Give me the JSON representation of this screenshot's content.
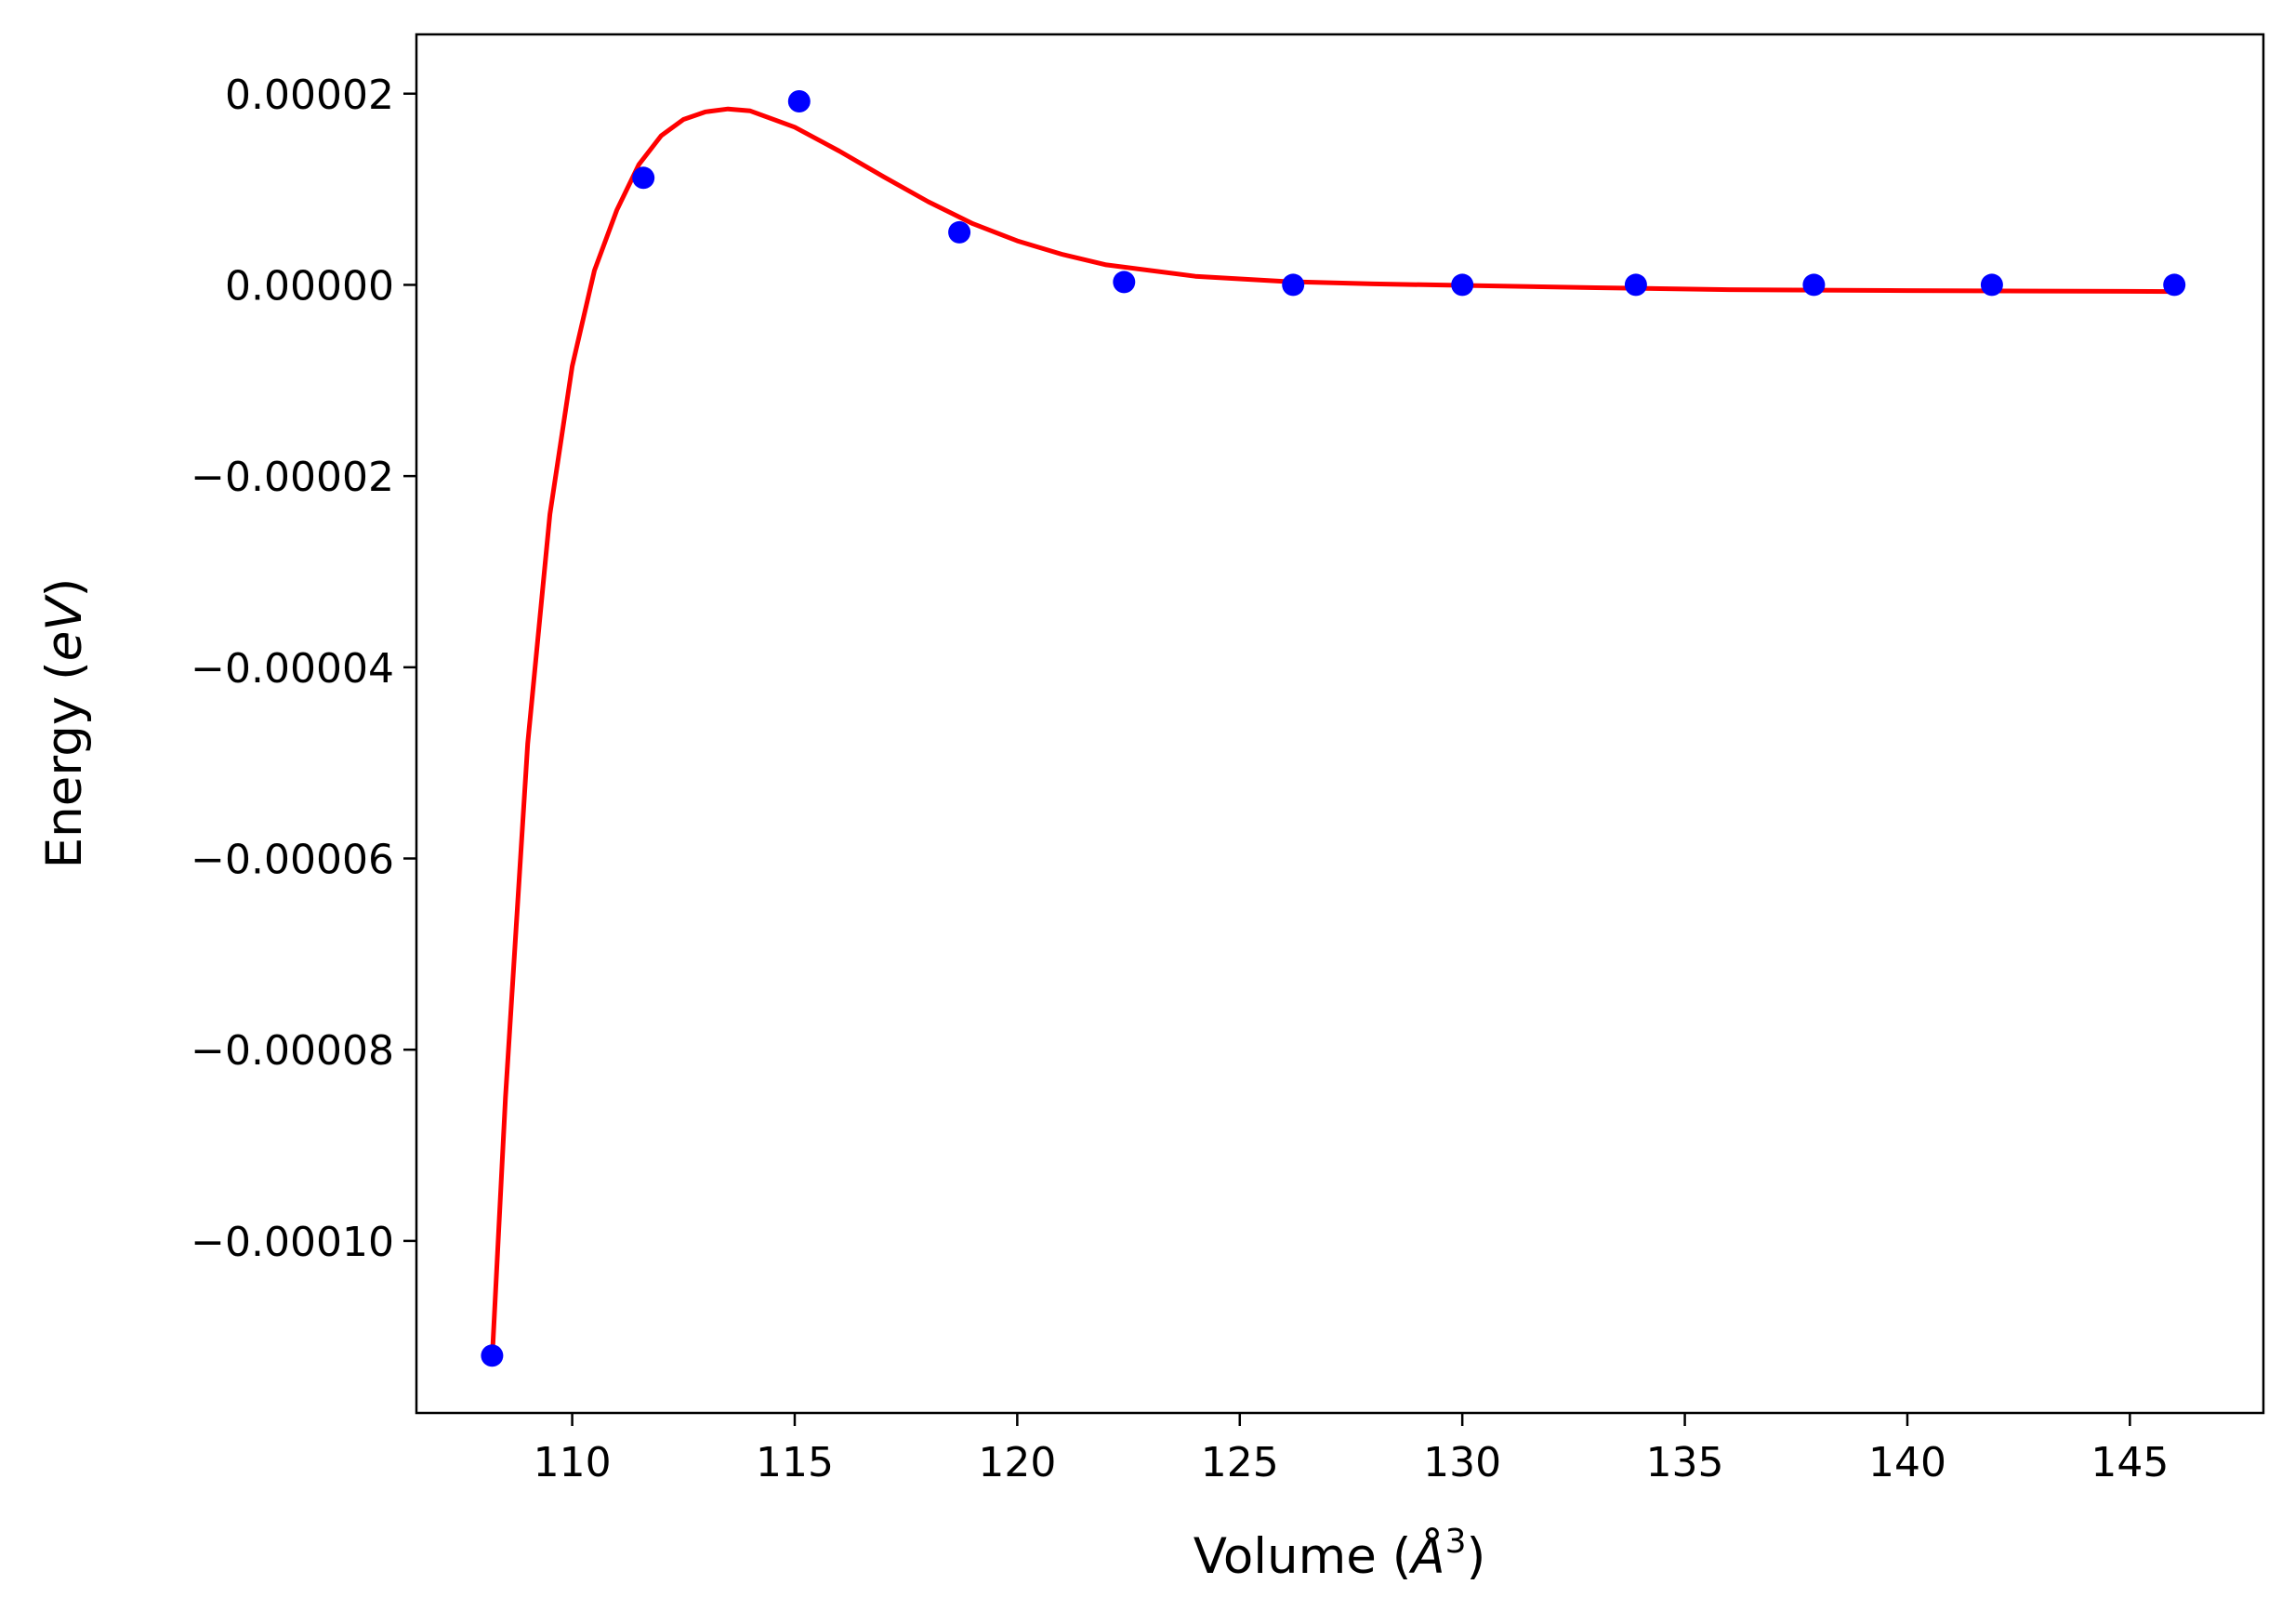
{
  "chart_data": {
    "type": "scatter",
    "xlabel": {
      "prefix": "Volume (",
      "symbol": "Å",
      "superscript": "3",
      "suffix": ")"
    },
    "ylabel": {
      "prefix": "Energy (",
      "italic": "eV",
      "suffix": ")"
    },
    "xlim": [
      106.5,
      148.0
    ],
    "ylim": [
      -0.000118,
      2.62e-05
    ],
    "x_ticks": [
      {
        "value": 110,
        "label": "110"
      },
      {
        "value": 115,
        "label": "115"
      },
      {
        "value": 120,
        "label": "120"
      },
      {
        "value": 125,
        "label": "125"
      },
      {
        "value": 130,
        "label": "130"
      },
      {
        "value": 135,
        "label": "135"
      },
      {
        "value": 140,
        "label": "140"
      },
      {
        "value": 145,
        "label": "145"
      }
    ],
    "y_ticks": [
      {
        "value": 2e-05,
        "label": "0.00002"
      },
      {
        "value": 0.0,
        "label": "0.00000"
      },
      {
        "value": -2e-05,
        "label": "−0.00002"
      },
      {
        "value": -4e-05,
        "label": "−0.00004"
      },
      {
        "value": -6e-05,
        "label": "−0.00006"
      },
      {
        "value": -8e-05,
        "label": "−0.00008"
      },
      {
        "value": -0.0001,
        "label": "−0.00010"
      }
    ],
    "grid": false,
    "legend": "none",
    "series": [
      {
        "kind": "scatter",
        "color": "#0000ff",
        "x": [
          108.2,
          111.6,
          115.1,
          118.7,
          122.4,
          126.2,
          130.0,
          133.9,
          137.9,
          141.9,
          146.0
        ],
        "y": [
          -0.000112,
          1.12e-05,
          1.92e-05,
          5.5e-06,
          3e-07,
          0.0,
          0.0,
          0.0,
          0.0,
          0.0,
          0.0
        ]
      },
      {
        "kind": "line",
        "color": "#ff0000",
        "x": [
          108.2,
          108.5,
          109.0,
          109.5,
          110.0,
          110.5,
          111.0,
          111.5,
          112.0,
          112.5,
          113.0,
          113.5,
          114.0,
          115.0,
          116.0,
          117.0,
          118.0,
          119.0,
          120.0,
          121.0,
          122.0,
          124.0,
          126.0,
          128.0,
          130.0,
          133.0,
          136.0,
          140.0,
          143.0,
          146.0
        ],
        "y": [
          -0.0001125,
          -8.5e-05,
          -4.8e-05,
          -2.4e-05,
          -8.5e-06,
          1.5e-06,
          7.8e-06,
          1.26e-05,
          1.56e-05,
          1.73e-05,
          1.81e-05,
          1.84e-05,
          1.82e-05,
          1.65e-05,
          1.4e-05,
          1.13e-05,
          8.7e-06,
          6.4e-06,
          4.6e-06,
          3.2e-06,
          2.1e-06,
          9e-07,
          3.5e-07,
          1e-07,
          -5e-08,
          -3e-07,
          -5e-07,
          -6e-07,
          -6.5e-07,
          -7e-07
        ]
      }
    ]
  }
}
